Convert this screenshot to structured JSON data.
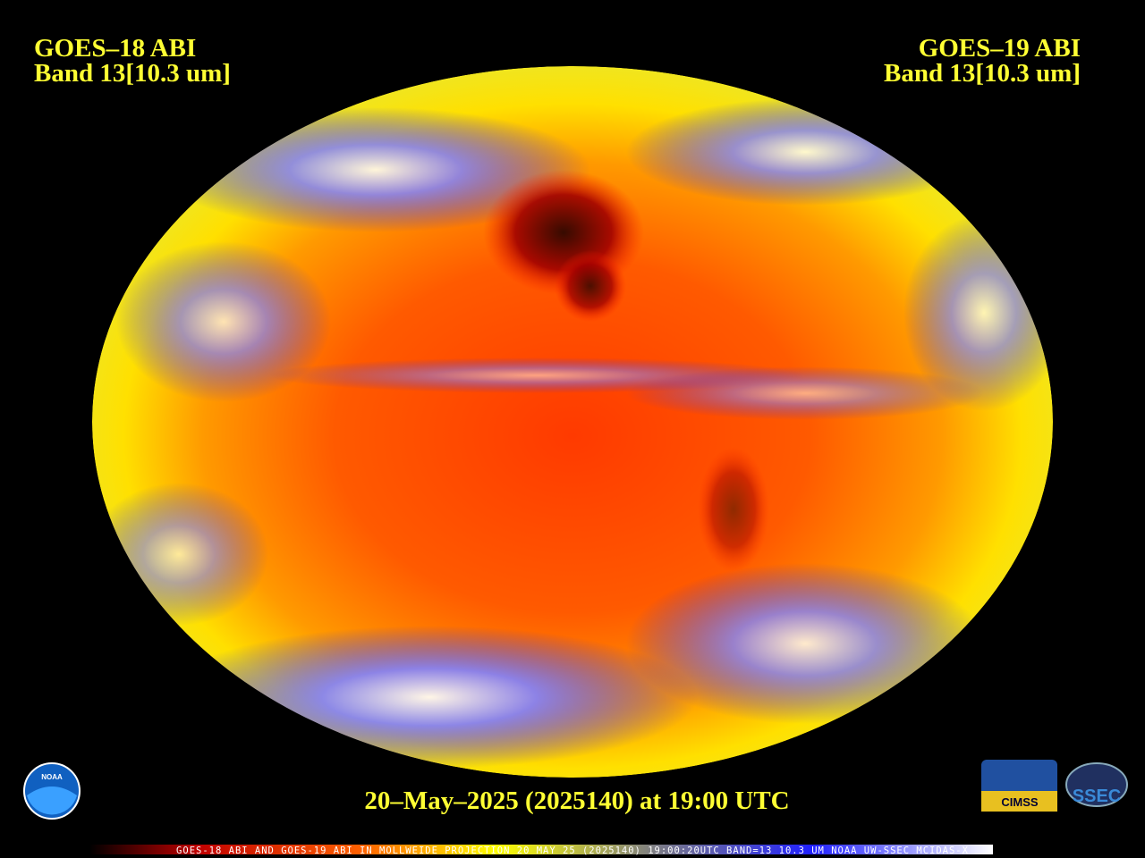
{
  "header": {
    "left": {
      "line1": "GOES–18 ABI",
      "line2": "Band 13[10.3 um]"
    },
    "right": {
      "line1": "GOES–19 ABI",
      "line2": "Band 13[10.3 um]"
    }
  },
  "timestamp": "20–May–2025 (2025140) at 19:00 UTC",
  "footer": "GOES-18 ABI AND GOES-19 ABI IN MOLLWEIDE PROJECTION 20 MAY 25 (2025140) 19:00:20UTC BAND=13 10.3 UM NOAA UW-SSEC MCIDAS-X",
  "logos": {
    "noaa": "NOAA",
    "cimss": "CIMSS",
    "ssec": "SSEC"
  }
}
